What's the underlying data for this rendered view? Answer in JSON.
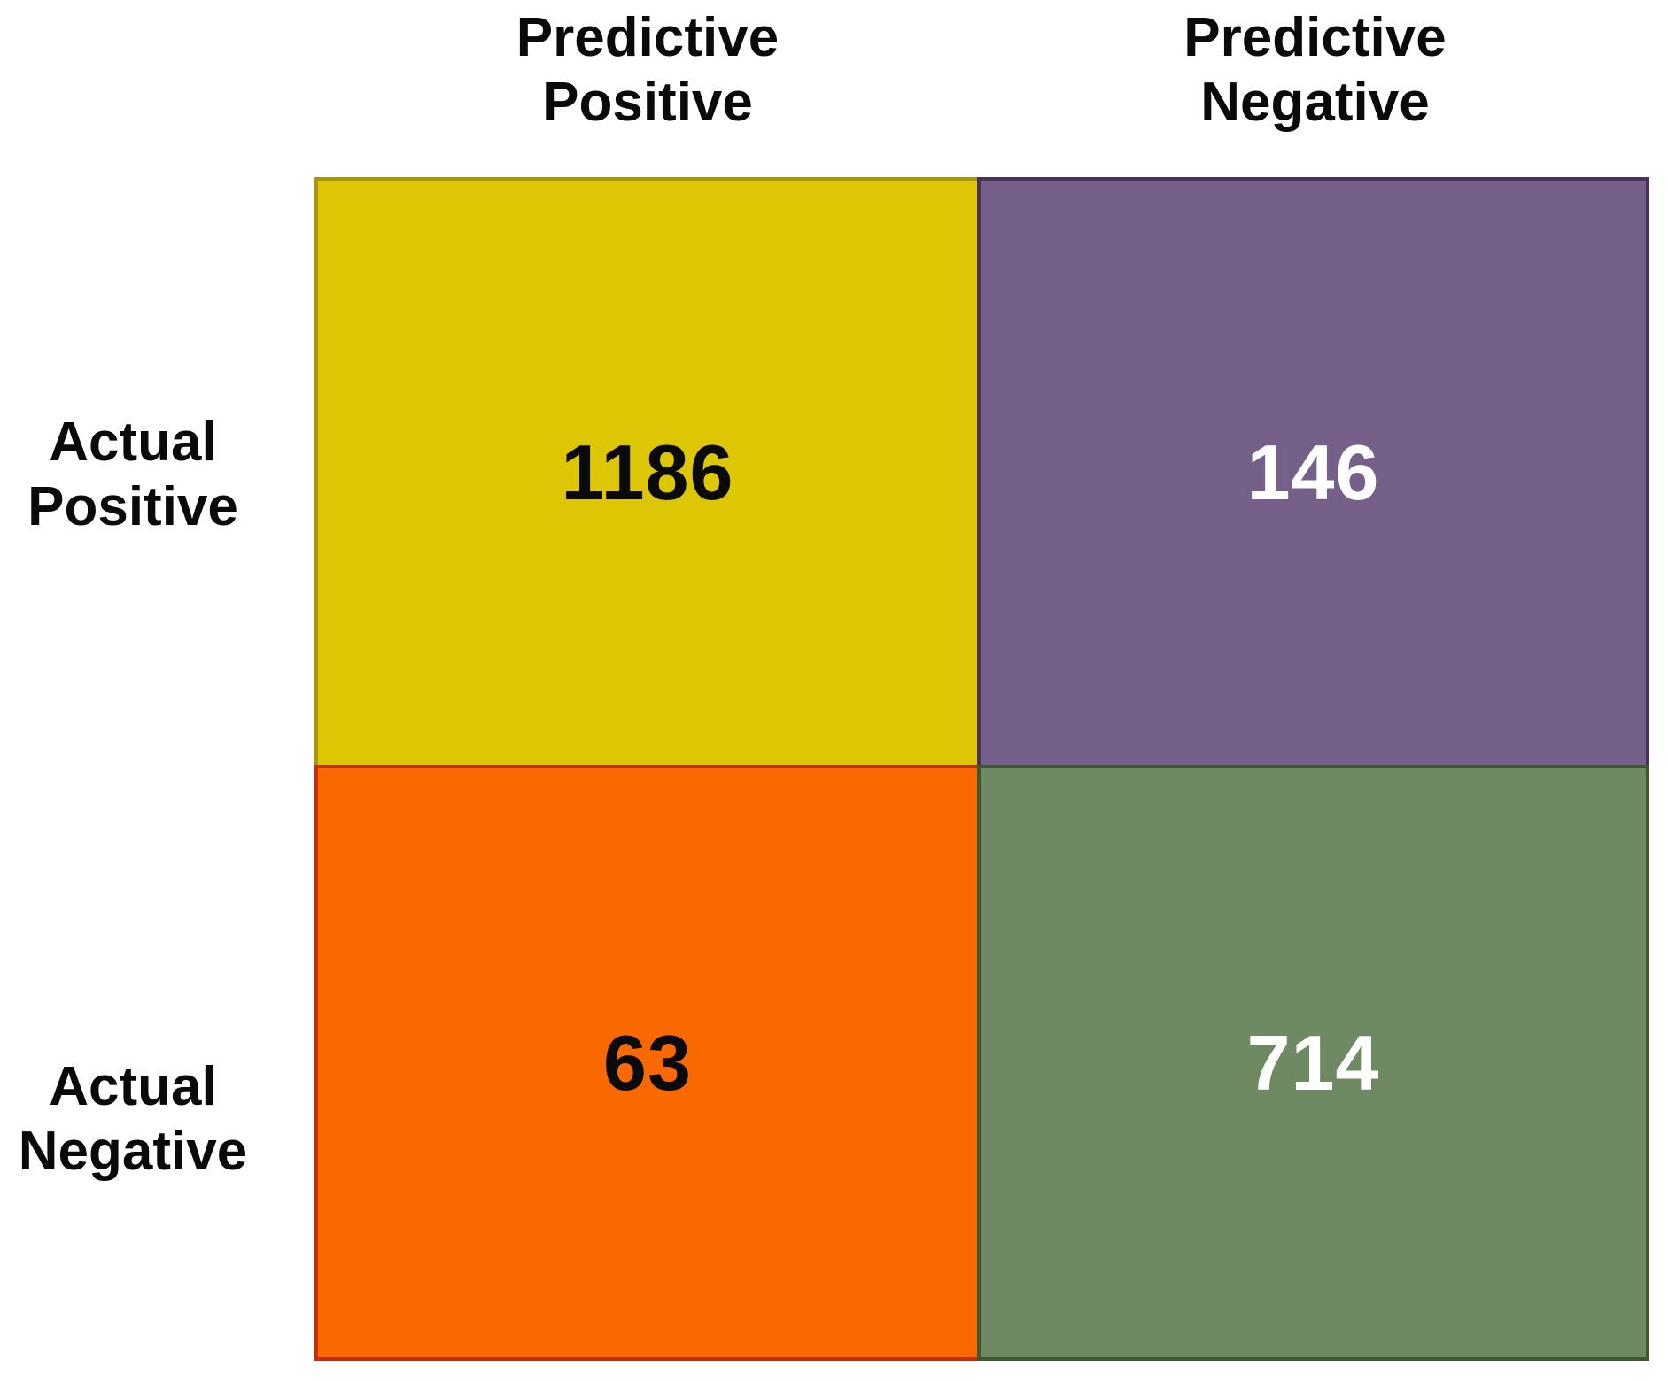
{
  "figure": {
    "background": "#ffffff",
    "label_color": "#0a0a0a"
  },
  "matrix": {
    "col_headers": [
      "Predictive\nPositive",
      "Predictive\nNegative"
    ],
    "row_headers": [
      "Actual\nPositive",
      "Actual\nNegative"
    ],
    "cells": [
      {
        "name": "true-positive",
        "value": "1186",
        "bg": "#DDC705",
        "border": "#A89606",
        "text": "#0a0a0a"
      },
      {
        "name": "false-negative",
        "value": "146",
        "bg": "#746088",
        "border": "#483356",
        "text": "#ffffff"
      },
      {
        "name": "false-positive",
        "value": "63",
        "bg": "#F96900",
        "border": "#C23001",
        "text": "#0a0a0a"
      },
      {
        "name": "true-negative",
        "value": "714",
        "bg": "#6F8A62",
        "border": "#3F5830",
        "text": "#ffffff"
      }
    ]
  },
  "chart_data": {
    "type": "heatmap",
    "title": "",
    "x_categories": [
      "Predictive Positive",
      "Predictive Negative"
    ],
    "y_categories": [
      "Actual Positive",
      "Actual Negative"
    ],
    "values": [
      [
        1186,
        146
      ],
      [
        63,
        714
      ]
    ],
    "cell_colors": [
      [
        "#DDC705",
        "#746088"
      ],
      [
        "#F96900",
        "#6F8A62"
      ]
    ],
    "value_text_colors": [
      [
        "#0a0a0a",
        "#ffffff"
      ],
      [
        "#0a0a0a",
        "#ffffff"
      ]
    ],
    "legend": "none",
    "grid": "off"
  }
}
